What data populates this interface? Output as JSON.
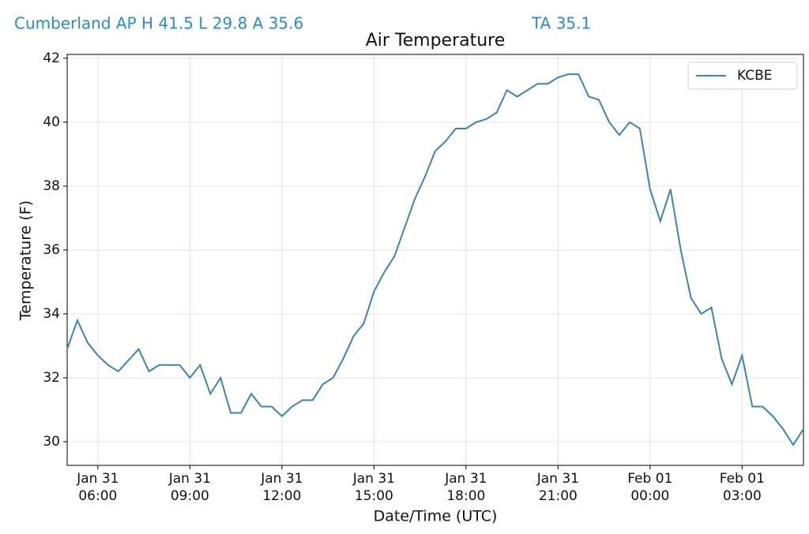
{
  "header": {
    "station": "Cumberland AP H 41.5 L 29.8 A 35.6",
    "current": "TA 35.1"
  },
  "chart_data": {
    "type": "line",
    "title": "Air Temperature",
    "x_label": "Date/Time (UTC)",
    "y_label": "Temperature (F)",
    "x": [
      "Jan 31 05:00",
      "Jan 31 05:20",
      "Jan 31 05:40",
      "Jan 31 06:00",
      "Jan 31 06:20",
      "Jan 31 06:40",
      "Jan 31 07:00",
      "Jan 31 07:20",
      "Jan 31 07:40",
      "Jan 31 08:00",
      "Jan 31 08:20",
      "Jan 31 08:40",
      "Jan 31 09:00",
      "Jan 31 09:20",
      "Jan 31 09:40",
      "Jan 31 10:00",
      "Jan 31 10:20",
      "Jan 31 10:40",
      "Jan 31 11:00",
      "Jan 31 11:20",
      "Jan 31 11:40",
      "Jan 31 12:00",
      "Jan 31 12:20",
      "Jan 31 12:40",
      "Jan 31 13:00",
      "Jan 31 13:20",
      "Jan 31 13:40",
      "Jan 31 14:00",
      "Jan 31 14:20",
      "Jan 31 14:40",
      "Jan 31 15:00",
      "Jan 31 15:20",
      "Jan 31 15:40",
      "Jan 31 16:00",
      "Jan 31 16:20",
      "Jan 31 16:40",
      "Jan 31 17:00",
      "Jan 31 17:20",
      "Jan 31 17:40",
      "Jan 31 18:00",
      "Jan 31 18:20",
      "Jan 31 18:40",
      "Jan 31 19:00",
      "Jan 31 19:20",
      "Jan 31 19:40",
      "Jan 31 20:00",
      "Jan 31 20:20",
      "Jan 31 20:40",
      "Jan 31 21:00",
      "Jan 31 21:20",
      "Jan 31 21:40",
      "Jan 31 22:00",
      "Jan 31 22:20",
      "Jan 31 22:40",
      "Jan 31 23:00",
      "Jan 31 23:20",
      "Jan 31 23:40",
      "Feb 01 00:00",
      "Feb 01 00:20",
      "Feb 01 00:40",
      "Feb 01 01:00",
      "Feb 01 01:20",
      "Feb 01 01:40",
      "Feb 01 02:00",
      "Feb 01 02:20",
      "Feb 01 02:40",
      "Feb 01 03:00",
      "Feb 01 03:20",
      "Feb 01 03:40",
      "Feb 01 04:00",
      "Feb 01 04:20",
      "Feb 01 04:40",
      "Feb 01 05:00"
    ],
    "series": [
      {
        "name": "KCBE",
        "color": "#3d85aa",
        "values": [
          32.9,
          33.8,
          33.1,
          32.7,
          32.4,
          32.2,
          32.55,
          32.9,
          32.2,
          32.4,
          32.4,
          32.4,
          32.0,
          32.4,
          31.5,
          32.0,
          30.9,
          30.9,
          31.5,
          31.1,
          31.1,
          30.8,
          31.1,
          31.3,
          31.3,
          31.8,
          32.0,
          32.6,
          33.3,
          33.7,
          34.7,
          35.3,
          35.8,
          36.7,
          37.6,
          38.3,
          39.1,
          39.4,
          39.8,
          39.8,
          40.0,
          40.1,
          40.3,
          41.0,
          40.8,
          41.0,
          41.2,
          41.2,
          41.4,
          41.5,
          41.5,
          40.8,
          40.7,
          40.0,
          39.6,
          40.0,
          39.8,
          37.9,
          36.9,
          37.9,
          36.0,
          34.5,
          34.0,
          34.2,
          32.6,
          31.8,
          32.7,
          31.1,
          31.1,
          30.8,
          30.4,
          29.9,
          30.4
        ]
      }
    ],
    "xlim": [
      "Jan 31 05:00",
      "Feb 01 05:00"
    ],
    "xticks": [
      {
        "value": "Jan 31 06:00",
        "label": [
          "Jan 31",
          "06:00"
        ]
      },
      {
        "value": "Jan 31 09:00",
        "label": [
          "Jan 31",
          "09:00"
        ]
      },
      {
        "value": "Jan 31 12:00",
        "label": [
          "Jan 31",
          "12:00"
        ]
      },
      {
        "value": "Jan 31 15:00",
        "label": [
          "Jan 31",
          "15:00"
        ]
      },
      {
        "value": "Jan 31 18:00",
        "label": [
          "Jan 31",
          "18:00"
        ]
      },
      {
        "value": "Jan 31 21:00",
        "label": [
          "Jan 31",
          "21:00"
        ]
      },
      {
        "value": "Feb 01 00:00",
        "label": [
          "Feb 01",
          "00:00"
        ]
      },
      {
        "value": "Feb 01 03:00",
        "label": [
          "Feb 01",
          "03:00"
        ]
      }
    ],
    "ylim": [
      29.26,
      42.12
    ],
    "yticks": [
      30,
      32,
      34,
      36,
      38,
      40,
      42
    ],
    "grid": true,
    "legend": "upper right"
  }
}
